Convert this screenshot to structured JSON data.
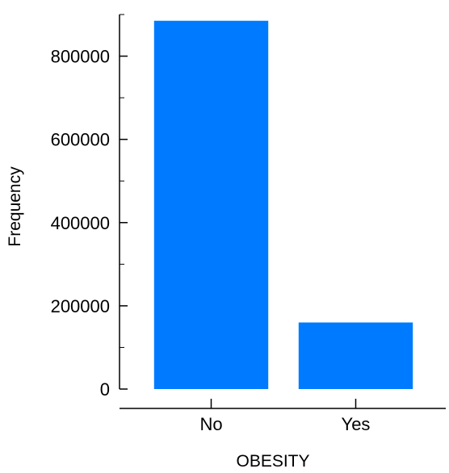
{
  "chart_data": {
    "type": "bar",
    "title": "",
    "xlabel": "OBESITY",
    "ylabel": "Frequency",
    "categories": [
      "No",
      "Yes"
    ],
    "values": [
      885000,
      160000
    ],
    "ylim": [
      0,
      900000
    ],
    "yticks": [
      0,
      200000,
      400000,
      600000,
      800000
    ],
    "ytick_labels": [
      "0",
      "200000",
      "400000",
      "600000",
      "800000"
    ],
    "grid": false,
    "legend": "none",
    "bar_color": "#007bff",
    "axis_color": "#000000"
  }
}
